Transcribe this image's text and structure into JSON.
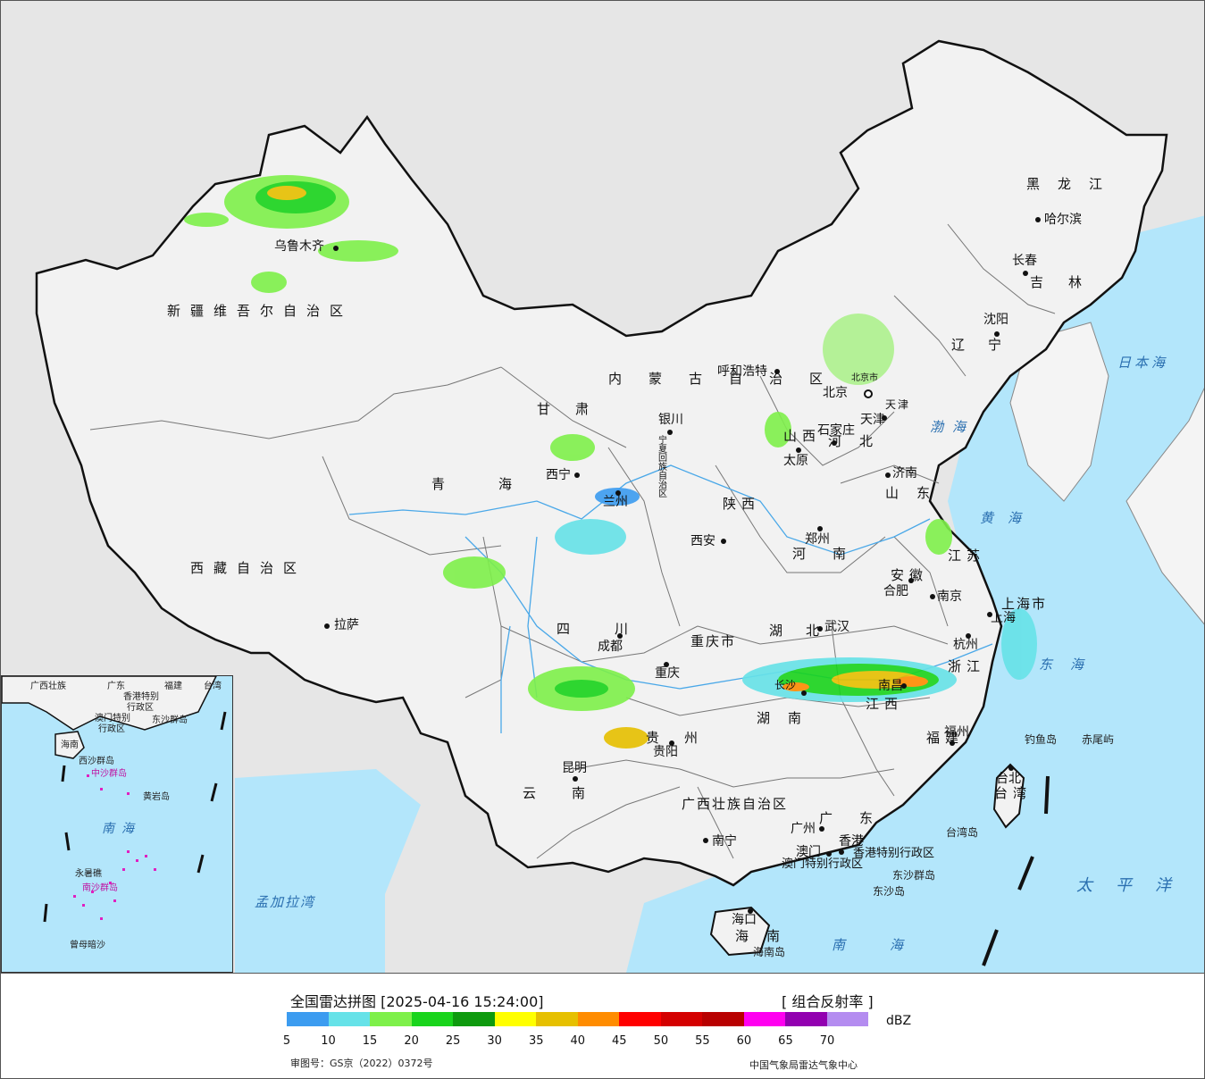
{
  "legend": {
    "title": "全国雷达拼图 [2025-04-16 15:24:00]",
    "product": "[ 组合反射率 ]",
    "unit": "dBZ",
    "ticks": [
      "5",
      "10",
      "15",
      "20",
      "25",
      "30",
      "35",
      "40",
      "45",
      "50",
      "55",
      "60",
      "65",
      "70"
    ],
    "colors": [
      "#3c9cf0",
      "#66e2e8",
      "#7ef04a",
      "#19d41c",
      "#0e9a0e",
      "#ffff00",
      "#e6c000",
      "#ff8c00",
      "#ff0000",
      "#d40000",
      "#b80000",
      "#ff00f0",
      "#9200b0",
      "#b48cf0"
    ],
    "approval": "审图号：GS京（2022）0372号",
    "agency": "中国气象局雷达气象中心"
  },
  "map": {
    "colors": {
      "land": "#f2f2f2",
      "sea": "#b3e6fb",
      "outside": "#e6e6e6",
      "border": "#111111",
      "province": "#777777",
      "river": "#4aa8e8"
    },
    "provinces": [
      "新疆维吾尔自治区",
      "西藏自治区",
      "青海",
      "甘肃",
      "内蒙古自治区",
      "黑龙江",
      "吉林",
      "辽宁",
      "河北",
      "山西",
      "陕西",
      "河南",
      "山东",
      "江苏",
      "安徽",
      "湖北",
      "四川",
      "重庆市",
      "贵州",
      "云南",
      "广西壮族自治区",
      "广东",
      "湖南",
      "江西",
      "浙江",
      "福建",
      "台湾",
      "海南",
      "上海市",
      "天津",
      "宁夏回族自治区",
      "北京市"
    ],
    "cities": [
      "乌鲁木齐",
      "拉萨",
      "西宁",
      "兰州",
      "银川",
      "呼和浩特",
      "北京",
      "天津",
      "石家庄",
      "太原",
      "济南",
      "郑州",
      "西安",
      "成都",
      "重庆",
      "贵阳",
      "昆明",
      "南宁",
      "广州",
      "香港",
      "澳门",
      "长沙",
      "南昌",
      "武汉",
      "合肥",
      "南京",
      "上海",
      "杭州",
      "福州",
      "台北",
      "海口",
      "长春",
      "沈阳",
      "哈尔滨"
    ],
    "seas": [
      "日本海",
      "渤海",
      "黄海",
      "东海",
      "南海",
      "太平洋",
      "孟加拉湾"
    ],
    "islands": [
      "钓鱼岛",
      "赤尾屿",
      "台湾岛",
      "东沙群岛",
      "东沙岛",
      "海南岛",
      "香港特别行政区",
      "澳门特别行政区"
    ],
    "inset": [
      "广西壮族",
      "广东",
      "福建",
      "台湾",
      "海南",
      "香港特别",
      "行政区",
      "澳门特别",
      "行政区",
      "东沙群岛",
      "中沙群岛",
      "黄岩岛",
      "南沙群岛",
      "曾母暗沙",
      "南海",
      "永暑礁",
      "西沙群岛"
    ]
  }
}
